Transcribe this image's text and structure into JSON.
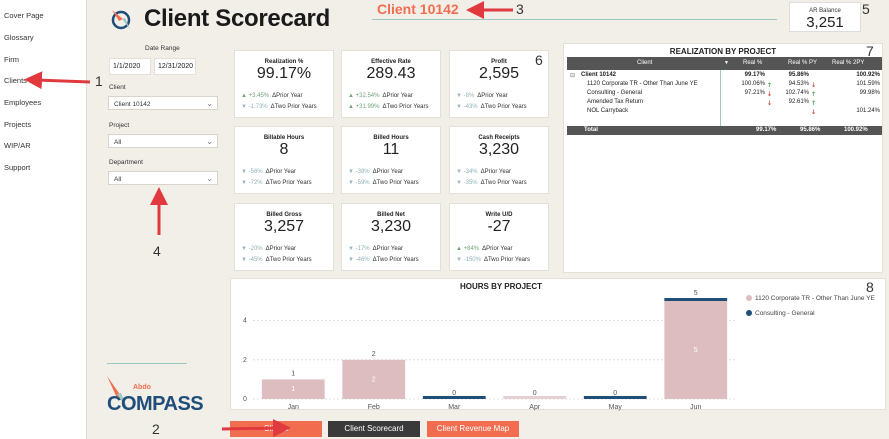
{
  "nav": {
    "items": [
      {
        "label": "Cover Page"
      },
      {
        "label": "Glossary"
      },
      {
        "label": "Firm"
      },
      {
        "label": "Clients"
      },
      {
        "label": "Employees"
      },
      {
        "label": "Projects"
      },
      {
        "label": "WIP/AR"
      },
      {
        "label": "Support"
      }
    ]
  },
  "header": {
    "title": "Client Scorecard",
    "client_name": "Client 10142"
  },
  "ar_balance": {
    "label": "AR Balance",
    "value": "3,251"
  },
  "filters": {
    "date_range_label": "Date Range",
    "date_start": "1/1/2020",
    "date_end": "12/31/2020",
    "client_label": "Client",
    "client_value": "Client 10142",
    "project_label": "Project",
    "project_value": "All",
    "department_label": "Department",
    "department_value": "All"
  },
  "kpis": [
    {
      "title": "Realization %",
      "value": "99.17%",
      "d1": "+3.45%",
      "d1_dir": "up",
      "l1": "ΔPrior Year",
      "d2": "-1.73%",
      "d2_dir": "down",
      "l2": "ΔTwo Prior Years"
    },
    {
      "title": "Effective Rate",
      "value": "289.43",
      "d1": "+32.54%",
      "d1_dir": "up",
      "l1": "ΔPrior Year",
      "d2": "+31.99%",
      "d2_dir": "up",
      "l2": "ΔTwo Prior Years"
    },
    {
      "title": "Profit",
      "value": "2,595",
      "d1": "-8%",
      "d1_dir": "down",
      "l1": "ΔPrior Year",
      "d2": "-43%",
      "d2_dir": "down",
      "l2": "ΔTwo Prior Years"
    },
    {
      "title": "Billable Hours",
      "value": "8",
      "d1": "-56%",
      "d1_dir": "down",
      "l1": "ΔPrior Year",
      "d2": "-72%",
      "d2_dir": "down",
      "l2": "ΔTwo Prior Years"
    },
    {
      "title": "Billed Hours",
      "value": "11",
      "d1": "-38%",
      "d1_dir": "down",
      "l1": "ΔPrior Year",
      "d2": "-59%",
      "d2_dir": "down",
      "l2": "ΔTwo Prior Years"
    },
    {
      "title": "Cash Receipts",
      "value": "3,230",
      "d1": "-34%",
      "d1_dir": "down",
      "l1": "ΔPrior Year",
      "d2": "-35%",
      "d2_dir": "down",
      "l2": "ΔTwo Prior Years"
    },
    {
      "title": "Billed Gross",
      "value": "3,257",
      "d1": "-20%",
      "d1_dir": "down",
      "l1": "ΔPrior Year",
      "d2": "-45%",
      "d2_dir": "down",
      "l2": "ΔTwo Prior Years"
    },
    {
      "title": "Billed Net",
      "value": "3,230",
      "d1": "-17%",
      "d1_dir": "down",
      "l1": "ΔPrior Year",
      "d2": "-46%",
      "d2_dir": "down",
      "l2": "ΔTwo Prior Years"
    },
    {
      "title": "Write U/D",
      "value": "-27",
      "d1": "+84%",
      "d1_dir": "up",
      "l1": "ΔPrior Year",
      "d2": "-150%",
      "d2_dir": "down",
      "l2": "ΔTwo Prior Years"
    }
  ],
  "realization": {
    "title": "REALIZATION BY PROJECT",
    "columns": [
      "Client",
      "Real %",
      "Real % PY",
      "Real % 2PY"
    ],
    "rows": [
      {
        "name": "Client 10142",
        "real": "99.17%",
        "real_arrow": "",
        "py": "95.86%",
        "py_arrow": "",
        "py2": "100.92%",
        "bold": true,
        "expand": "⊟"
      },
      {
        "name": "1120 Corporate TR - Other Than June YE",
        "real": "100.06%",
        "real_arrow": "up",
        "py": "94.53%",
        "py_arrow": "down",
        "py2": "101.59%",
        "bold": false
      },
      {
        "name": "Consulting - General",
        "real": "97.21%",
        "real_arrow": "down",
        "py": "102.74%",
        "py_arrow": "up",
        "py2": "99.98%",
        "bold": false
      },
      {
        "name": "Amended Tax Return",
        "real": "",
        "real_arrow": "down",
        "py": "92.61%",
        "py_arrow": "up",
        "py2": "",
        "bold": false
      },
      {
        "name": "NOL Carryback",
        "real": "",
        "real_arrow": "",
        "py": "",
        "py_arrow": "down",
        "py2": "101.24%",
        "bold": false
      }
    ],
    "total": {
      "name": "Total",
      "real": "99.17%",
      "py": "95.86%",
      "py2": "100.92%"
    }
  },
  "chart_data": {
    "type": "bar",
    "title": "HOURS BY PROJECT",
    "categories": [
      "Jan",
      "Feb",
      "Mar",
      "Apr",
      "May",
      "Jun"
    ],
    "series": [
      {
        "name": "1120 Corporate TR - Other Than June YE",
        "color": "#ddbdbf",
        "values": [
          1,
          2,
          0,
          0,
          0,
          5
        ]
      },
      {
        "name": "Consulting - General",
        "color": "#1f4e79",
        "values": [
          0,
          0,
          0,
          0,
          0,
          0
        ]
      }
    ],
    "totals": [
      1,
      2,
      0,
      0,
      0,
      5
    ],
    "ylim": [
      0,
      5
    ],
    "yticks": [
      0,
      2,
      4
    ]
  },
  "buttons": [
    {
      "label": "Clients",
      "color": "#f26d50"
    },
    {
      "label": "Client Scorecard",
      "color": "#3a3a3a"
    },
    {
      "label": "Client Revenue Map",
      "color": "#f26d50"
    }
  ],
  "logo": {
    "small": "Abdo",
    "big": "COMPASS"
  },
  "annotations": [
    "1",
    "2",
    "3",
    "4",
    "5",
    "6",
    "7",
    "8"
  ]
}
